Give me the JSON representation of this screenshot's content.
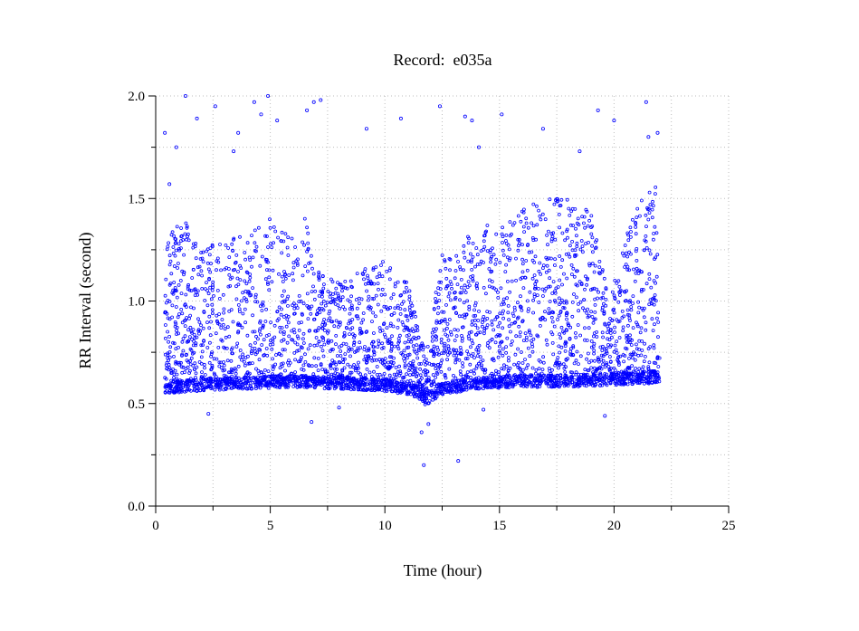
{
  "chart_data": {
    "type": "scatter",
    "title": "Record:  e035a",
    "xlabel": "Time (hour)",
    "ylabel": "RR Interval (second)",
    "xlim": [
      0,
      25
    ],
    "ylim": [
      0,
      2
    ],
    "x_ticks": [
      0,
      5,
      10,
      15,
      20,
      25
    ],
    "x_tick_labels": [
      "0",
      "5",
      "10",
      "15",
      "20",
      "25"
    ],
    "x_minor_ticks": [
      2.5,
      7.5,
      12.5,
      17.5,
      22.5
    ],
    "y_ticks": [
      0,
      0.5,
      1,
      1.5,
      2
    ],
    "y_tick_labels": [
      "0.0",
      "0.5",
      "1.0",
      "1.5",
      "2.0"
    ],
    "y_minor_ticks": [
      0.25,
      0.75,
      1.25,
      1.75
    ],
    "grid": true,
    "marker": "open-circle",
    "marker_color": "#0000ff",
    "record_span_hours": [
      0.4,
      22.0
    ],
    "series": [
      {
        "baseline_band": {
          "x": [
            0.4,
            2,
            4,
            6,
            8,
            10,
            11.2,
            11.8,
            12.4,
            14,
            16,
            18,
            20,
            22
          ],
          "y": [
            0.58,
            0.59,
            0.6,
            0.61,
            0.6,
            0.59,
            0.57,
            0.52,
            0.57,
            0.6,
            0.61,
            0.61,
            0.62,
            0.63
          ]
        },
        "upper_envelope": {
          "x": [
            0.4,
            1,
            2,
            3,
            4,
            5,
            6,
            6.5,
            7,
            8,
            9,
            10,
            11,
            11.8,
            12.5,
            13,
            14,
            15,
            16,
            17,
            18,
            19,
            19.8,
            20.5,
            21,
            22
          ],
          "y": [
            1.3,
            1.45,
            1.25,
            1.3,
            1.35,
            1.4,
            1.3,
            1.45,
            1.15,
            1.1,
            1.15,
            1.2,
            1.1,
            0.75,
            1.25,
            1.2,
            1.4,
            1.35,
            1.45,
            1.5,
            1.5,
            1.45,
            1.0,
            1.3,
            1.5,
            1.6
          ]
        },
        "points": [
          {
            "x": 0.4,
            "y": 1.82
          },
          {
            "x": 0.6,
            "y": 1.57
          },
          {
            "x": 0.9,
            "y": 1.75
          },
          {
            "x": 1.3,
            "y": 2.0
          },
          {
            "x": 1.8,
            "y": 1.89
          },
          {
            "x": 2.6,
            "y": 1.95
          },
          {
            "x": 3.4,
            "y": 1.73
          },
          {
            "x": 3.6,
            "y": 1.82
          },
          {
            "x": 4.3,
            "y": 1.97
          },
          {
            "x": 4.6,
            "y": 1.91
          },
          {
            "x": 4.9,
            "y": 2.0
          },
          {
            "x": 5.3,
            "y": 1.88
          },
          {
            "x": 6.6,
            "y": 1.93
          },
          {
            "x": 6.9,
            "y": 1.97
          },
          {
            "x": 7.2,
            "y": 1.98
          },
          {
            "x": 9.2,
            "y": 1.84
          },
          {
            "x": 10.7,
            "y": 1.89
          },
          {
            "x": 12.4,
            "y": 1.95
          },
          {
            "x": 13.5,
            "y": 1.9
          },
          {
            "x": 13.8,
            "y": 1.88
          },
          {
            "x": 14.1,
            "y": 1.75
          },
          {
            "x": 15.1,
            "y": 1.91
          },
          {
            "x": 16.9,
            "y": 1.84
          },
          {
            "x": 18.5,
            "y": 1.73
          },
          {
            "x": 19.3,
            "y": 1.93
          },
          {
            "x": 20.0,
            "y": 1.88
          },
          {
            "x": 21.4,
            "y": 1.97
          },
          {
            "x": 21.5,
            "y": 1.8
          },
          {
            "x": 21.9,
            "y": 1.82
          },
          {
            "x": 6.8,
            "y": 0.41
          },
          {
            "x": 11.7,
            "y": 0.2
          },
          {
            "x": 13.2,
            "y": 0.22
          },
          {
            "x": 11.6,
            "y": 0.36
          },
          {
            "x": 11.9,
            "y": 0.4
          },
          {
            "x": 8.0,
            "y": 0.48
          },
          {
            "x": 2.3,
            "y": 0.45
          },
          {
            "x": 14.3,
            "y": 0.47
          },
          {
            "x": 19.6,
            "y": 0.44
          }
        ]
      }
    ]
  }
}
